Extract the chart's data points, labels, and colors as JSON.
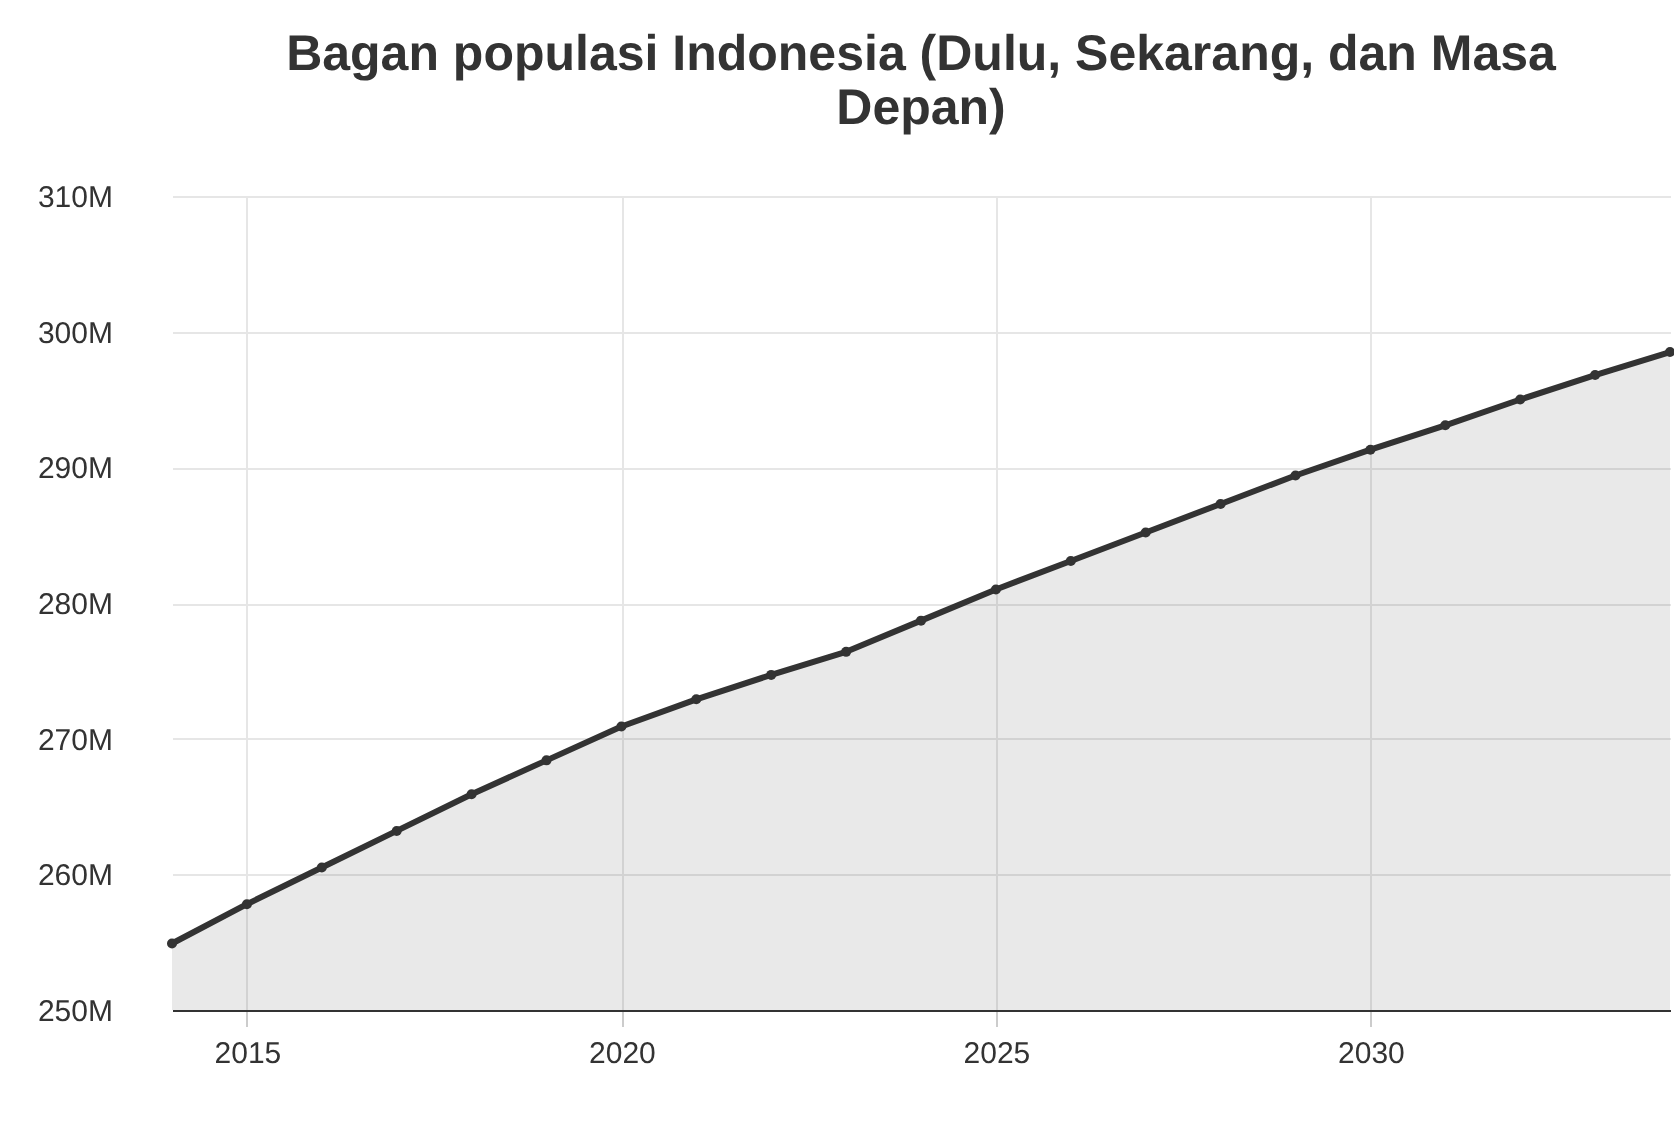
{
  "chart_data": {
    "type": "area",
    "title": "Bagan populasi Indonesia (Dulu, Sekarang, dan Masa Depan)",
    "x": [
      2014,
      2015,
      2016,
      2017,
      2018,
      2019,
      2020,
      2021,
      2022,
      2023,
      2024,
      2025,
      2026,
      2027,
      2028,
      2029,
      2030,
      2031,
      2032,
      2033,
      2034
    ],
    "series": [
      {
        "color": "#333333",
        "values": [
          254.9,
          257.8,
          260.5,
          263.2,
          265.9,
          268.4,
          270.9,
          272.9,
          274.7,
          276.4,
          278.7,
          281.0,
          283.1,
          285.2,
          287.3,
          289.4,
          291.3,
          293.1,
          295.0,
          296.8,
          298.5
        ]
      }
    ],
    "xlim": [
      2014,
      2034
    ],
    "xticks": [
      2015,
      2020,
      2025,
      2030
    ],
    "ylim": [
      250,
      310
    ],
    "yticks": [
      {
        "value": 250,
        "label": "250M"
      },
      {
        "value": 260,
        "label": "260M"
      },
      {
        "value": 270,
        "label": "270M"
      },
      {
        "value": 280,
        "label": "280M"
      },
      {
        "value": 290,
        "label": "290M"
      },
      {
        "value": 300,
        "label": "300M"
      },
      {
        "value": 310,
        "label": "310M"
      }
    ],
    "grid": true,
    "marker": "circle"
  }
}
